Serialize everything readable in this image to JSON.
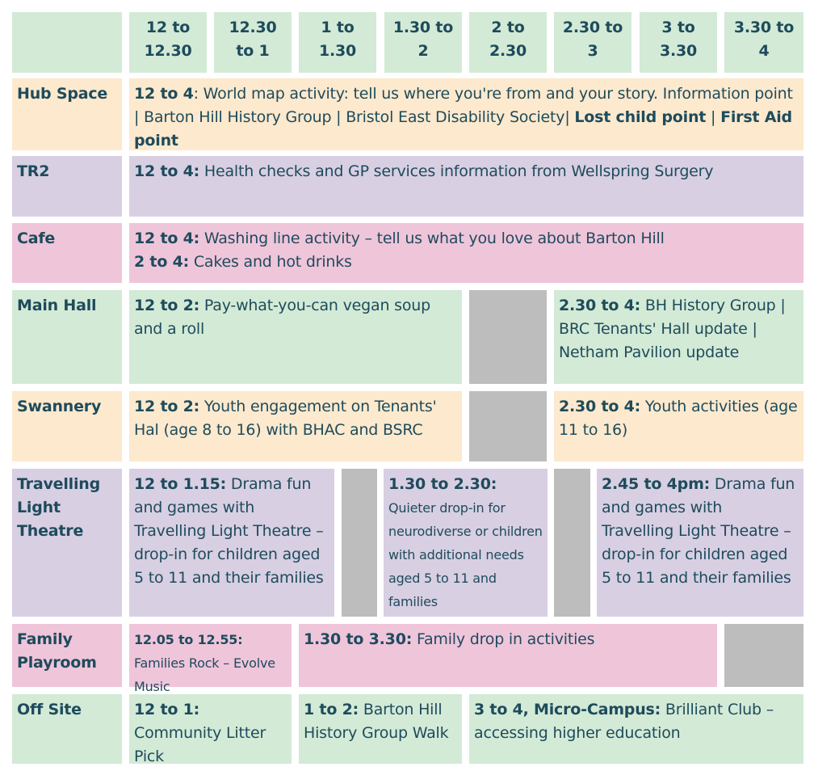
{
  "header": {
    "times": [
      "12 to 12.30",
      "12.30 to 1",
      "1 to 1.30",
      "1.30 to 2",
      "2 to 2.30",
      "2.30 to 3",
      "3 to 3.30",
      "3.30 to 4"
    ]
  },
  "colors": {
    "green": "#d3ead6",
    "peach": "#fde9cd",
    "lavender": "#d8cfe3",
    "pink": "#efc5da",
    "gray": "#bdbdbd",
    "text": "#1e4b5c"
  },
  "rows": [
    {
      "label": "Hub Space",
      "cells": [
        {
          "parts": [
            {
              "b": true,
              "t": "12 to 4"
            },
            {
              "t": ": World map activity: tell us where you're from and your story. Information point | Barton Hill History Group | Bristol East Disability Society| "
            },
            {
              "b": true,
              "t": "Lost child point"
            },
            {
              "t": " | "
            },
            {
              "b": true,
              "t": "First Aid point"
            }
          ]
        }
      ]
    },
    {
      "label": "TR2",
      "cells": [
        {
          "parts": [
            {
              "b": true,
              "t": "12 to 4:"
            },
            {
              "t": " Health checks and GP services information from Wellspring Surgery"
            }
          ]
        }
      ]
    },
    {
      "label": "Cafe",
      "cells": [
        {
          "parts": [
            {
              "b": true,
              "t": "12 to 4:"
            },
            {
              "t": " Washing line activity – tell us what you love about Barton Hill"
            },
            {
              "br": true
            },
            {
              "b": true,
              "t": "2 to 4:"
            },
            {
              "t": " Cakes and hot drinks"
            }
          ]
        }
      ]
    },
    {
      "label": "Main Hall",
      "cells": [
        {
          "parts": [
            {
              "b": true,
              "t": "12 to 2:"
            },
            {
              "t": " Pay-what-you-can vegan soup and a roll"
            }
          ]
        },
        {
          "empty": true
        },
        {
          "parts": [
            {
              "b": true,
              "t": "2.30 to 4:"
            },
            {
              "t": " BH History Group | BRC Tenants' Hall update | Netham Pavilion update"
            }
          ]
        }
      ]
    },
    {
      "label": "Swannery",
      "cells": [
        {
          "parts": [
            {
              "b": true,
              "t": "12 to 2:"
            },
            {
              "t": " Youth engagement on Tenants' Hal (age 8 to 16) with BHAC and BSRC"
            }
          ]
        },
        {
          "empty": true
        },
        {
          "parts": [
            {
              "b": true,
              "t": "2.30 to 4:"
            },
            {
              "t": " Youth activities (age 11 to 16)"
            }
          ]
        }
      ]
    },
    {
      "label": "Travelling Light Theatre",
      "cells": [
        {
          "parts": [
            {
              "b": true,
              "t": "12 to 1.15:"
            },
            {
              "t": " Drama fun and games with Travelling Light Theatre – drop-in for children aged 5 to 11 and their families"
            }
          ]
        },
        {
          "empty": true
        },
        {
          "parts": [
            {
              "b": true,
              "t": "1.30 to 2.30:"
            },
            {
              "br": true
            },
            {
              "small": true,
              "t": "Quieter drop-in for neurodiverse or children with additional needs aged 5 to 11 and families"
            }
          ]
        },
        {
          "empty": true
        },
        {
          "parts": [
            {
              "b": true,
              "t": "2.45 to 4pm:"
            },
            {
              "t": " Drama fun and games with Travelling Light Theatre – drop-in for children aged 5 to 11 and their families"
            }
          ]
        }
      ]
    },
    {
      "label": "Family Playroom",
      "cells": [
        {
          "parts": [
            {
              "b": true,
              "small": true,
              "t": "12.05 to 12.55:"
            },
            {
              "br": true
            },
            {
              "small": true,
              "t": "Families Rock – Evolve Music"
            }
          ]
        },
        {
          "parts": [
            {
              "b": true,
              "t": "1.30 to 3.30:"
            },
            {
              "t": " Family drop in activities"
            }
          ]
        },
        {
          "empty": true
        }
      ]
    },
    {
      "label": "Off Site",
      "cells": [
        {
          "parts": [
            {
              "b": true,
              "t": "12 to 1:"
            },
            {
              "t": " Community Litter Pick"
            }
          ]
        },
        {
          "parts": [
            {
              "b": true,
              "t": "1 to 2:"
            },
            {
              "t": " Barton Hill History Group Walk"
            }
          ]
        },
        {
          "parts": [
            {
              "b": true,
              "t": "3 to 4, Micro-Campus:"
            },
            {
              "t": " Brilliant Club – accessing higher education"
            }
          ]
        }
      ]
    }
  ]
}
